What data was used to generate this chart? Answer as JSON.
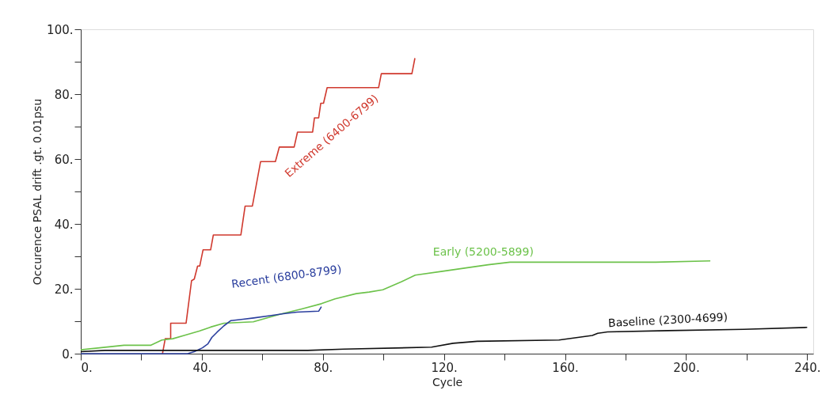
{
  "chart_data": {
    "type": "line",
    "xlabel": "Cycle",
    "ylabel": "Occurence PSAL drift .gt. 0.01psu",
    "xlim": [
      0,
      242
    ],
    "ylim": [
      0,
      100
    ],
    "xticks": [
      {
        "value": 0,
        "label": "0."
      },
      {
        "value": 20,
        "label": null
      },
      {
        "value": 40,
        "label": "40."
      },
      {
        "value": 60,
        "label": null
      },
      {
        "value": 80,
        "label": "80."
      },
      {
        "value": 100,
        "label": null
      },
      {
        "value": 120,
        "label": "120."
      },
      {
        "value": 140,
        "label": null
      },
      {
        "value": 160,
        "label": "160."
      },
      {
        "value": 180,
        "label": null
      },
      {
        "value": 200,
        "label": "200."
      },
      {
        "value": 220,
        "label": null
      },
      {
        "value": 240,
        "label": "240."
      }
    ],
    "yticks": [
      {
        "value": 0,
        "label": "0."
      },
      {
        "value": 10,
        "label": null
      },
      {
        "value": 20,
        "label": "20."
      },
      {
        "value": 30,
        "label": null
      },
      {
        "value": 40,
        "label": "40."
      },
      {
        "value": 50,
        "label": null
      },
      {
        "value": 60,
        "label": "60."
      },
      {
        "value": 70,
        "label": null
      },
      {
        "value": 80,
        "label": "80."
      },
      {
        "value": 90,
        "label": null
      },
      {
        "value": 100,
        "label": "100."
      }
    ],
    "grid": false,
    "marker": "none",
    "line_style": "solid",
    "series": [
      {
        "color": "#d0392e",
        "x": [
          27,
          27.9,
          29.7,
          29.7,
          34.8,
          36.6,
          37.5,
          38.6,
          39.3,
          40.4,
          42.9,
          43.8,
          52.9,
          54.3,
          56.7,
          59.4,
          64.3,
          65.6,
          70.5,
          71.6,
          76.6,
          77.2,
          78.6,
          79.3,
          80.2,
          81.4,
          98.4,
          99.3,
          109.4,
          110.4
        ],
        "values": [
          0,
          4.6,
          4.6,
          9.4,
          9.4,
          22.5,
          23,
          27,
          27,
          32,
          32,
          36.6,
          36.6,
          45.5,
          45.5,
          59.2,
          59.2,
          63.7,
          63.7,
          68.3,
          68.3,
          72.7,
          72.7,
          77.2,
          77.2,
          82,
          82,
          86.3,
          86.3,
          91.1
        ]
      },
      {
        "color": "#6cc24a",
        "x": [
          0,
          14.3,
          23.2,
          26.8,
          30.4,
          34.8,
          39.3,
          42.9,
          47.3,
          57,
          66,
          73,
          79.5,
          84,
          91,
          95.3,
          99.8,
          106,
          110.5,
          119.5,
          130,
          134.6,
          141.8,
          190,
          208
        ],
        "values": [
          1.2,
          2.6,
          2.6,
          4.2,
          4.6,
          5.8,
          7,
          8.2,
          9.4,
          9.8,
          12.2,
          13.8,
          15.4,
          16.9,
          18.5,
          19,
          19.7,
          22.2,
          24.2,
          25.4,
          26.8,
          27.4,
          28.2,
          28.2,
          28.6
        ]
      },
      {
        "color": "#2b3f9e",
        "x": [
          0,
          35.3,
          37.5,
          40.2,
          42,
          43.3,
          45,
          47.3,
          49.6,
          53.6,
          57.1,
          62.5,
          67,
          71.4,
          78.6,
          79.5
        ],
        "values": [
          0,
          0,
          0.6,
          1.8,
          3,
          5,
          6.6,
          8.6,
          10.2,
          10.6,
          11,
          11.7,
          12.3,
          12.8,
          13.1,
          14.5
        ]
      },
      {
        "color": "#111111",
        "x": [
          0,
          8,
          75,
          87,
          115.9,
          123,
          131,
          158,
          169,
          170.8,
          174,
          194,
          219,
          240
        ],
        "values": [
          0.6,
          1,
          1,
          1.4,
          2,
          3.2,
          3.8,
          4.2,
          5.6,
          6.3,
          6.7,
          7.1,
          7.5,
          8.1
        ]
      }
    ],
    "annotations": [
      "Extreme (6400-6799)",
      "Early (5200-5899)",
      "Recent (6800-8799)",
      "Baseline (2300-4699)"
    ]
  }
}
